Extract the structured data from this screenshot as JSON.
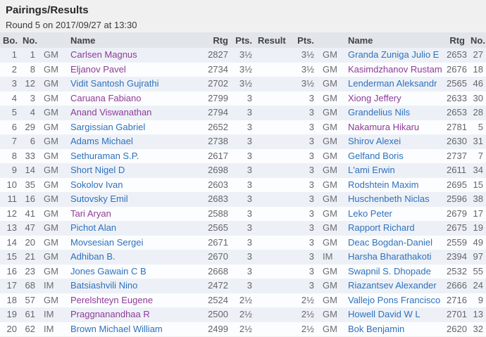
{
  "page": {
    "title": "Pairings/Results",
    "subtitle": "Round 5 on 2017/09/27 at 13:30"
  },
  "colors": {
    "page_bg": "#f0f0f1",
    "table_header_bg": "#e2e5ea",
    "row_stripe": "#edf1f7",
    "link_blue": "#2e71bd",
    "link_visited_purple": "#8f3a99",
    "number_text": "#63656a"
  },
  "table": {
    "columns": [
      {
        "key": "bo",
        "header": "Bo.",
        "type": "num",
        "name": "board-number"
      },
      {
        "key": "w_no",
        "header": "No.",
        "type": "num",
        "name": "white-start-no"
      },
      {
        "key": "w_title",
        "header": "",
        "type": "title",
        "name": "white-title"
      },
      {
        "key": "w_name",
        "header": "Name",
        "type": "name",
        "name": "white-name",
        "visited_key": "w_visited"
      },
      {
        "key": "w_rtg",
        "header": "Rtg",
        "type": "num",
        "name": "white-rating"
      },
      {
        "key": "w_pts",
        "header": "Pts.",
        "type": "num",
        "name": "white-points"
      },
      {
        "key": "result",
        "header": "Result",
        "type": "result",
        "name": "result"
      },
      {
        "key": "b_pts",
        "header": "Pts.",
        "type": "num",
        "name": "black-points"
      },
      {
        "key": "b_title",
        "header": "",
        "type": "title",
        "name": "black-title"
      },
      {
        "key": "b_name",
        "header": "Name",
        "type": "name",
        "name": "black-name",
        "visited_key": "b_visited"
      },
      {
        "key": "b_rtg",
        "header": "Rtg",
        "type": "num",
        "name": "black-rating"
      },
      {
        "key": "b_no",
        "header": "No.",
        "type": "num",
        "name": "black-start-no"
      }
    ],
    "rows": [
      {
        "bo": "1",
        "w_no": "1",
        "w_title": "GM",
        "w_name": "Carlsen Magnus",
        "w_visited": true,
        "w_rtg": "2827",
        "w_pts": "3½",
        "result": "",
        "b_pts": "3½",
        "b_title": "GM",
        "b_name": "Granda Zuniga Julio E",
        "b_visited": false,
        "b_rtg": "2653",
        "b_no": "27"
      },
      {
        "bo": "2",
        "w_no": "8",
        "w_title": "GM",
        "w_name": "Eljanov Pavel",
        "w_visited": true,
        "w_rtg": "2734",
        "w_pts": "3½",
        "result": "",
        "b_pts": "3½",
        "b_title": "GM",
        "b_name": "Kasimdzhanov Rustam",
        "b_visited": true,
        "b_rtg": "2676",
        "b_no": "18"
      },
      {
        "bo": "3",
        "w_no": "12",
        "w_title": "GM",
        "w_name": "Vidit Santosh Gujrathi",
        "w_visited": false,
        "w_rtg": "2702",
        "w_pts": "3½",
        "result": "",
        "b_pts": "3½",
        "b_title": "GM",
        "b_name": "Lenderman Aleksandr",
        "b_visited": false,
        "b_rtg": "2565",
        "b_no": "46"
      },
      {
        "bo": "4",
        "w_no": "3",
        "w_title": "GM",
        "w_name": "Caruana Fabiano",
        "w_visited": true,
        "w_rtg": "2799",
        "w_pts": "3",
        "result": "",
        "b_pts": "3",
        "b_title": "GM",
        "b_name": "Xiong Jeffery",
        "b_visited": true,
        "b_rtg": "2633",
        "b_no": "30"
      },
      {
        "bo": "5",
        "w_no": "4",
        "w_title": "GM",
        "w_name": "Anand Viswanathan",
        "w_visited": true,
        "w_rtg": "2794",
        "w_pts": "3",
        "result": "",
        "b_pts": "3",
        "b_title": "GM",
        "b_name": "Grandelius Nils",
        "b_visited": false,
        "b_rtg": "2653",
        "b_no": "28"
      },
      {
        "bo": "6",
        "w_no": "29",
        "w_title": "GM",
        "w_name": "Sargissian Gabriel",
        "w_visited": false,
        "w_rtg": "2652",
        "w_pts": "3",
        "result": "",
        "b_pts": "3",
        "b_title": "GM",
        "b_name": "Nakamura Hikaru",
        "b_visited": true,
        "b_rtg": "2781",
        "b_no": "5"
      },
      {
        "bo": "7",
        "w_no": "6",
        "w_title": "GM",
        "w_name": "Adams Michael",
        "w_visited": false,
        "w_rtg": "2738",
        "w_pts": "3",
        "result": "",
        "b_pts": "3",
        "b_title": "GM",
        "b_name": "Shirov Alexei",
        "b_visited": false,
        "b_rtg": "2630",
        "b_no": "31"
      },
      {
        "bo": "8",
        "w_no": "33",
        "w_title": "GM",
        "w_name": "Sethuraman S.P.",
        "w_visited": false,
        "w_rtg": "2617",
        "w_pts": "3",
        "result": "",
        "b_pts": "3",
        "b_title": "GM",
        "b_name": "Gelfand Boris",
        "b_visited": false,
        "b_rtg": "2737",
        "b_no": "7"
      },
      {
        "bo": "9",
        "w_no": "14",
        "w_title": "GM",
        "w_name": "Short Nigel D",
        "w_visited": false,
        "w_rtg": "2698",
        "w_pts": "3",
        "result": "",
        "b_pts": "3",
        "b_title": "GM",
        "b_name": "L'ami Erwin",
        "b_visited": false,
        "b_rtg": "2611",
        "b_no": "34"
      },
      {
        "bo": "10",
        "w_no": "35",
        "w_title": "GM",
        "w_name": "Sokolov Ivan",
        "w_visited": false,
        "w_rtg": "2603",
        "w_pts": "3",
        "result": "",
        "b_pts": "3",
        "b_title": "GM",
        "b_name": "Rodshtein Maxim",
        "b_visited": false,
        "b_rtg": "2695",
        "b_no": "15"
      },
      {
        "bo": "11",
        "w_no": "16",
        "w_title": "GM",
        "w_name": "Sutovsky Emil",
        "w_visited": false,
        "w_rtg": "2683",
        "w_pts": "3",
        "result": "",
        "b_pts": "3",
        "b_title": "GM",
        "b_name": "Huschenbeth Niclas",
        "b_visited": false,
        "b_rtg": "2596",
        "b_no": "38"
      },
      {
        "bo": "12",
        "w_no": "41",
        "w_title": "GM",
        "w_name": "Tari Aryan",
        "w_visited": true,
        "w_rtg": "2588",
        "w_pts": "3",
        "result": "",
        "b_pts": "3",
        "b_title": "GM",
        "b_name": "Leko Peter",
        "b_visited": false,
        "b_rtg": "2679",
        "b_no": "17"
      },
      {
        "bo": "13",
        "w_no": "47",
        "w_title": "GM",
        "w_name": "Pichot Alan",
        "w_visited": false,
        "w_rtg": "2565",
        "w_pts": "3",
        "result": "",
        "b_pts": "3",
        "b_title": "GM",
        "b_name": "Rapport Richard",
        "b_visited": false,
        "b_rtg": "2675",
        "b_no": "19"
      },
      {
        "bo": "14",
        "w_no": "20",
        "w_title": "GM",
        "w_name": "Movsesian Sergei",
        "w_visited": false,
        "w_rtg": "2671",
        "w_pts": "3",
        "result": "",
        "b_pts": "3",
        "b_title": "GM",
        "b_name": "Deac Bogdan-Daniel",
        "b_visited": false,
        "b_rtg": "2559",
        "b_no": "49"
      },
      {
        "bo": "15",
        "w_no": "21",
        "w_title": "GM",
        "w_name": "Adhiban B.",
        "w_visited": false,
        "w_rtg": "2670",
        "w_pts": "3",
        "result": "",
        "b_pts": "3",
        "b_title": "IM",
        "b_name": "Harsha Bharathakoti",
        "b_visited": false,
        "b_rtg": "2394",
        "b_no": "97"
      },
      {
        "bo": "16",
        "w_no": "23",
        "w_title": "GM",
        "w_name": "Jones Gawain C B",
        "w_visited": false,
        "w_rtg": "2668",
        "w_pts": "3",
        "result": "",
        "b_pts": "3",
        "b_title": "GM",
        "b_name": "Swapnil S. Dhopade",
        "b_visited": false,
        "b_rtg": "2532",
        "b_no": "55"
      },
      {
        "bo": "17",
        "w_no": "68",
        "w_title": "IM",
        "w_name": "Batsiashvili Nino",
        "w_visited": false,
        "w_rtg": "2472",
        "w_pts": "3",
        "result": "",
        "b_pts": "3",
        "b_title": "GM",
        "b_name": "Riazantsev Alexander",
        "b_visited": false,
        "b_rtg": "2666",
        "b_no": "24"
      },
      {
        "bo": "18",
        "w_no": "57",
        "w_title": "GM",
        "w_name": "Perelshteyn Eugene",
        "w_visited": true,
        "w_rtg": "2524",
        "w_pts": "2½",
        "result": "",
        "b_pts": "2½",
        "b_title": "GM",
        "b_name": "Vallejo Pons Francisco",
        "b_visited": false,
        "b_rtg": "2716",
        "b_no": "9"
      },
      {
        "bo": "19",
        "w_no": "61",
        "w_title": "IM",
        "w_name": "Praggnanandhaa R",
        "w_visited": true,
        "w_rtg": "2500",
        "w_pts": "2½",
        "result": "",
        "b_pts": "2½",
        "b_title": "GM",
        "b_name": "Howell David W L",
        "b_visited": false,
        "b_rtg": "2701",
        "b_no": "13"
      },
      {
        "bo": "20",
        "w_no": "62",
        "w_title": "IM",
        "w_name": "Brown Michael William",
        "w_visited": false,
        "w_rtg": "2499",
        "w_pts": "2½",
        "result": "",
        "b_pts": "2½",
        "b_title": "GM",
        "b_name": "Bok Benjamin",
        "b_visited": false,
        "b_rtg": "2620",
        "b_no": "32"
      }
    ]
  }
}
